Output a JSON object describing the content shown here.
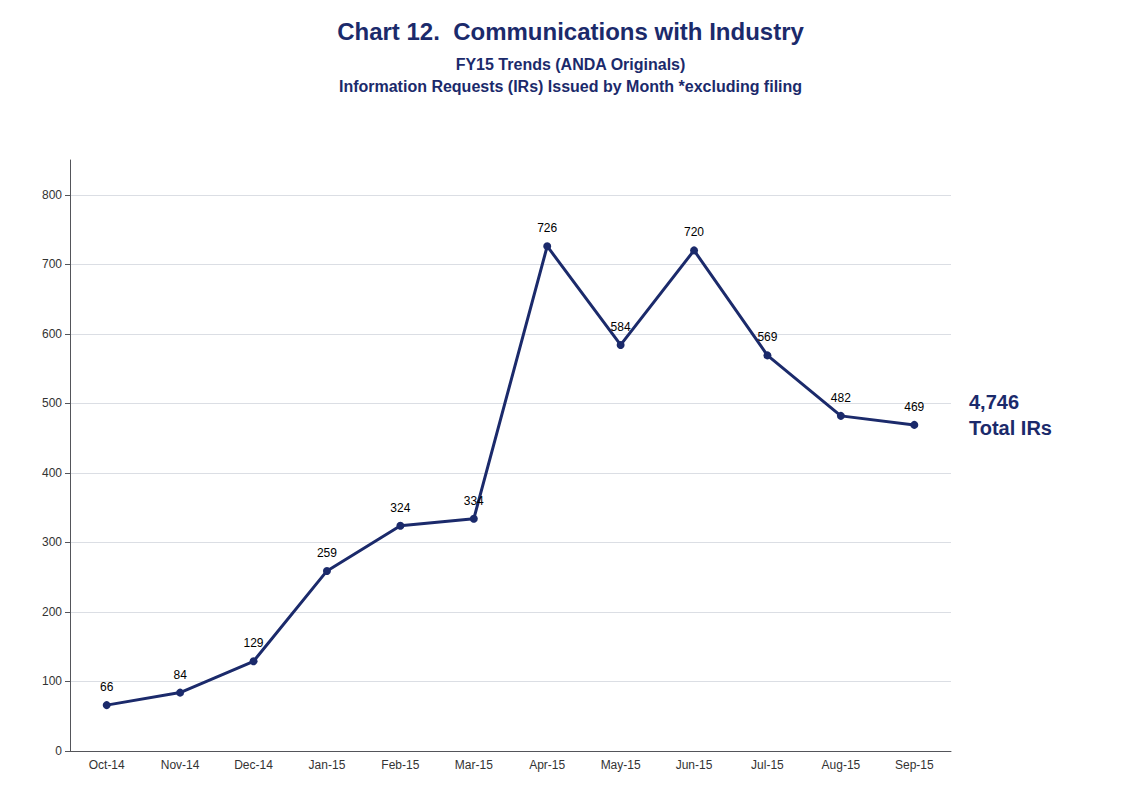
{
  "chart_data": {
    "type": "line",
    "title": "Chart 12.  Communications with Industry",
    "subtitle": [
      "FY15 Trends (ANDA Originals)",
      "Information Requests (IRs) Issued by Month *excluding filing"
    ],
    "categories": [
      "Oct-14",
      "Nov-14",
      "Dec-14",
      "Jan-15",
      "Feb-15",
      "Mar-15",
      "Apr-15",
      "May-15",
      "Jun-15",
      "Jul-15",
      "Aug-15",
      "Sep-15"
    ],
    "values": [
      66,
      84,
      129,
      259,
      324,
      334,
      726,
      584,
      720,
      569,
      482,
      469
    ],
    "color": "#1B2A6B",
    "marker": "circle",
    "ylim": [
      0,
      850
    ],
    "yticks": [
      0,
      100,
      200,
      300,
      400,
      500,
      600,
      700,
      800
    ],
    "grid": true,
    "data_labels": true,
    "annotations": [
      {
        "text": "4,746\nTotal IRs",
        "color": "#1B2A6B"
      }
    ]
  }
}
